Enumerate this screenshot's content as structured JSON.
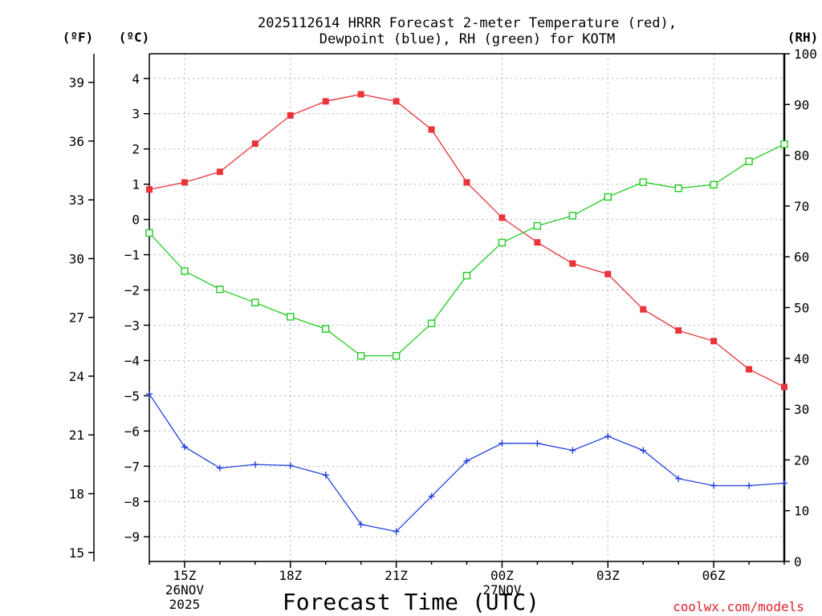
{
  "chart_data": {
    "type": "line",
    "title": [
      "2025112614 HRRR Forecast 2-meter Temperature (red),",
      "Dewpoint (blue), RH (green) for KOTM"
    ],
    "xlabel": "Forecast Time (UTC)",
    "credit": "coolwx.com/models",
    "units": {
      "fahrenheit": "(ºF)",
      "celsius": "(ºC)",
      "rh": "(RH)"
    },
    "x_hours": [
      14,
      15,
      16,
      17,
      18,
      19,
      20,
      21,
      22,
      23,
      24,
      25,
      26,
      27,
      28,
      29,
      30,
      31,
      32
    ],
    "x_range": [
      14,
      32
    ],
    "x_ticks": [
      {
        "hour": 15,
        "label": "15Z",
        "date": "26NOV",
        "year": "2025"
      },
      {
        "hour": 18,
        "label": "18Z"
      },
      {
        "hour": 21,
        "label": "21Z"
      },
      {
        "hour": 24,
        "label": "00Z",
        "date": "27NOV"
      },
      {
        "hour": 27,
        "label": "03Z"
      },
      {
        "hour": 30,
        "label": "06Z"
      }
    ],
    "y_celsius": {
      "range": [
        -9.7,
        4.7
      ],
      "ticks": [
        4,
        3,
        2,
        1,
        0,
        -1,
        -2,
        -3,
        -4,
        -5,
        -6,
        -7,
        -8,
        -9
      ]
    },
    "y_fahrenheit": {
      "range": [
        14.54,
        40.46
      ],
      "ticks": [
        39,
        36,
        33,
        30,
        27,
        24,
        21,
        18,
        15
      ]
    },
    "y_rh": {
      "range": [
        0,
        100
      ],
      "ticks": [
        100,
        90,
        80,
        70,
        60,
        50,
        40,
        30,
        20,
        10,
        0
      ]
    },
    "series": [
      {
        "name": "Temperature",
        "axis": "celsius",
        "color": "#e8343a",
        "marker": "filled-square",
        "values": [
          0.85,
          1.05,
          1.35,
          2.15,
          2.95,
          3.35,
          3.55,
          3.35,
          2.55,
          1.05,
          0.05,
          -0.65,
          -1.25,
          -1.55,
          -2.55,
          -3.15,
          -3.45,
          -4.25,
          -4.75
        ]
      },
      {
        "name": "Dewpoint",
        "axis": "celsius",
        "color": "#2040e0",
        "marker": "plus",
        "values": [
          -4.95,
          -6.45,
          -7.05,
          -6.95,
          -6.98,
          -7.25,
          -8.65,
          -8.85,
          -7.85,
          -6.85,
          -6.35,
          -6.35,
          -6.55,
          -6.15,
          -6.55,
          -7.35,
          -7.55,
          -7.55,
          -7.48
        ]
      },
      {
        "name": "RH",
        "axis": "rh",
        "color": "#22cc22",
        "marker": "open-square",
        "values": [
          64.7,
          57.2,
          53.6,
          51.0,
          48.2,
          45.8,
          40.5,
          40.5,
          46.9,
          56.3,
          62.8,
          66.1,
          68.1,
          71.8,
          74.7,
          73.5,
          74.2,
          78.8,
          82.2
        ]
      }
    ]
  }
}
